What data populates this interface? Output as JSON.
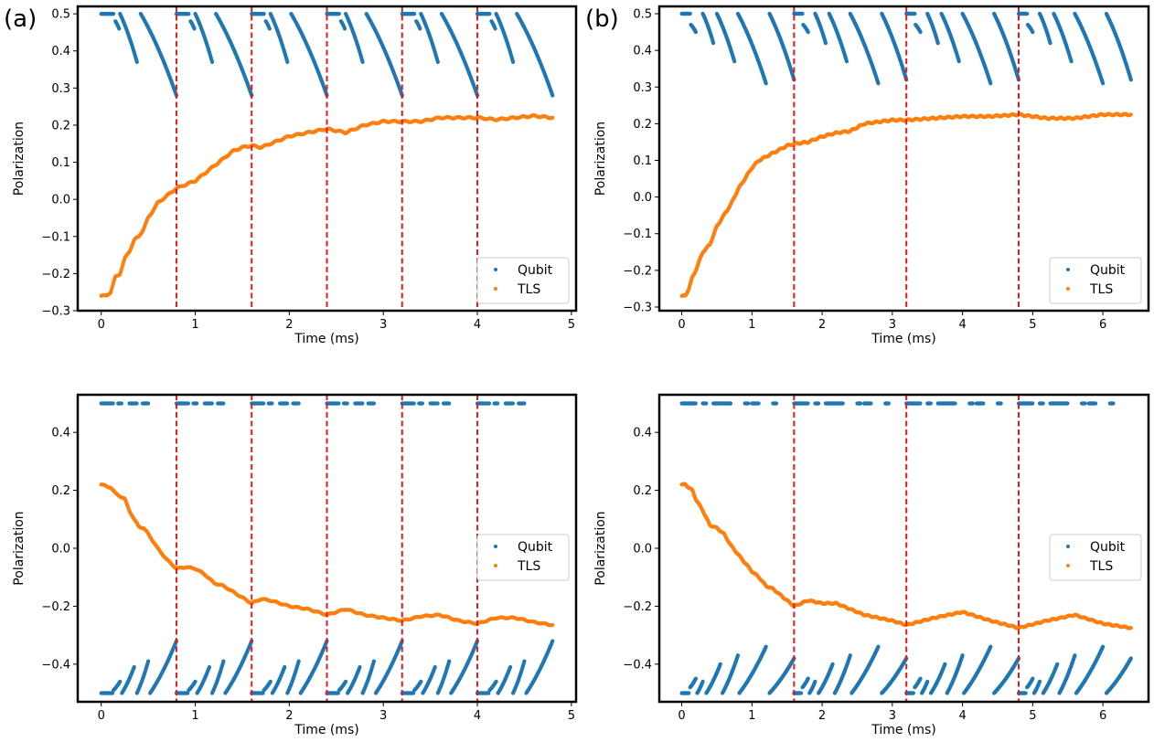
{
  "panel_labels": [
    "(a)",
    "(b)"
  ],
  "colors": {
    "qubit": "#1f77b4",
    "tls": "#ff7f0e",
    "vline": "#e41a1c",
    "frame": "#000000"
  },
  "chart_data": [
    {
      "type": "scatter",
      "panel": "(a)",
      "xlabel": "Time (ms)",
      "ylabel": "Polarization",
      "xlim": [
        -0.25,
        5.05
      ],
      "ylim": [
        -0.3,
        0.52
      ],
      "xticks": [
        0,
        1,
        2,
        3,
        4,
        5
      ],
      "yticks": [
        -0.3,
        -0.2,
        -0.1,
        0.0,
        0.1,
        0.2,
        0.3,
        0.4,
        0.5
      ],
      "ytick_labels": [
        "−0.3",
        "−0.2",
        "−0.1",
        "0.0",
        "0.1",
        "0.2",
        "0.3",
        "0.4",
        "0.5"
      ],
      "vlines": [
        0.8,
        1.6,
        2.4,
        3.2,
        4.0
      ],
      "legend": {
        "position": "lower-right",
        "entries": [
          "Qubit",
          "TLS"
        ]
      },
      "series": [
        {
          "name": "Qubit",
          "kind": "sawtooth",
          "period": 0.8,
          "end": 4.8,
          "segments": [
            [
              0.0,
              0.13,
              0.5,
              0.5
            ],
            [
              0.15,
              0.19,
              0.48,
              0.46
            ],
            [
              0.2,
              0.38,
              0.5,
              0.37
            ],
            [
              0.42,
              0.8,
              0.5,
              0.28
            ]
          ]
        },
        {
          "name": "TLS",
          "kind": "curve",
          "x": [
            0,
            0.05,
            0.1,
            0.15,
            0.2,
            0.25,
            0.3,
            0.35,
            0.4,
            0.45,
            0.5,
            0.6,
            0.7,
            0.8,
            0.9,
            1.0,
            1.1,
            1.2,
            1.3,
            1.4,
            1.5,
            1.6,
            1.7,
            1.8,
            1.9,
            2.0,
            2.2,
            2.4,
            2.6,
            2.8,
            3.0,
            3.2,
            3.4,
            3.6,
            3.8,
            4.0,
            4.2,
            4.4,
            4.6,
            4.8
          ],
          "y": [
            -0.26,
            -0.26,
            -0.25,
            -0.21,
            -0.2,
            -0.16,
            -0.14,
            -0.11,
            -0.1,
            -0.08,
            -0.05,
            -0.01,
            0.01,
            0.03,
            0.04,
            0.05,
            0.07,
            0.09,
            0.11,
            0.13,
            0.14,
            0.145,
            0.14,
            0.15,
            0.16,
            0.17,
            0.18,
            0.19,
            0.18,
            0.2,
            0.21,
            0.21,
            0.21,
            0.22,
            0.22,
            0.22,
            0.215,
            0.22,
            0.225,
            0.22
          ]
        }
      ]
    },
    {
      "type": "scatter",
      "panel": "(b)",
      "xlabel": "Time (ms)",
      "ylabel": "Polarization",
      "xlim": [
        -0.32,
        6.65
      ],
      "ylim": [
        -0.31,
        0.52
      ],
      "xticks": [
        0,
        1,
        2,
        3,
        4,
        5,
        6
      ],
      "yticks": [
        -0.3,
        -0.2,
        -0.1,
        0.0,
        0.1,
        0.2,
        0.3,
        0.4,
        0.5
      ],
      "ytick_labels": [
        "−0.3",
        "−0.2",
        "−0.1",
        "0.0",
        "0.1",
        "0.2",
        "0.3",
        "0.4",
        "0.5"
      ],
      "vlines": [
        1.6,
        3.2,
        4.8
      ],
      "legend": {
        "position": "lower-right",
        "entries": [
          "Qubit",
          "TLS"
        ]
      },
      "series": [
        {
          "name": "Qubit",
          "kind": "sawtooth",
          "period": 1.6,
          "end": 6.4,
          "segments": [
            [
              0.0,
              0.12,
              0.5,
              0.5
            ],
            [
              0.13,
              0.2,
              0.47,
              0.45
            ],
            [
              0.3,
              0.45,
              0.5,
              0.42
            ],
            [
              0.5,
              0.75,
              0.5,
              0.37
            ],
            [
              0.8,
              1.2,
              0.5,
              0.31
            ],
            [
              1.25,
              1.6,
              0.5,
              0.32
            ]
          ]
        },
        {
          "name": "TLS",
          "kind": "curve",
          "x": [
            0,
            0.05,
            0.1,
            0.15,
            0.2,
            0.3,
            0.4,
            0.5,
            0.6,
            0.7,
            0.8,
            0.9,
            1.0,
            1.1,
            1.2,
            1.3,
            1.4,
            1.5,
            1.6,
            1.8,
            2.0,
            2.2,
            2.4,
            2.6,
            2.8,
            3.0,
            3.2,
            3.6,
            4.0,
            4.4,
            4.8,
            5.2,
            5.6,
            6.0,
            6.4
          ],
          "y": [
            -0.27,
            -0.27,
            -0.25,
            -0.22,
            -0.2,
            -0.15,
            -0.13,
            -0.08,
            -0.05,
            -0.02,
            0.02,
            0.05,
            0.08,
            0.1,
            0.11,
            0.12,
            0.13,
            0.14,
            0.145,
            0.15,
            0.165,
            0.175,
            0.18,
            0.2,
            0.205,
            0.21,
            0.21,
            0.215,
            0.22,
            0.22,
            0.225,
            0.215,
            0.215,
            0.225,
            0.225
          ]
        }
      ]
    },
    {
      "type": "scatter",
      "panel": "(a) bottom",
      "xlabel": "Time (ms)",
      "ylabel": "Polarization",
      "xlim": [
        -0.25,
        5.05
      ],
      "ylim": [
        -0.53,
        0.53
      ],
      "xticks": [
        0,
        1,
        2,
        3,
        4,
        5
      ],
      "yticks": [
        -0.4,
        -0.2,
        0.0,
        0.2,
        0.4
      ],
      "ytick_labels": [
        "−0.4",
        "−0.2",
        "0.0",
        "0.2",
        "0.4"
      ],
      "vlines": [
        0.8,
        1.6,
        2.4,
        3.2,
        4.0
      ],
      "legend": {
        "position": "center-right",
        "entries": [
          "Qubit",
          "TLS"
        ]
      },
      "series": [
        {
          "name": "Qubit",
          "kind": "sawtooth",
          "period": 0.8,
          "end": 4.8,
          "top_dots": [
            [
              0.0,
              0.13
            ],
            [
              0.18,
              0.22
            ],
            [
              0.3,
              0.38
            ],
            [
              0.44,
              0.5
            ]
          ],
          "segments": [
            [
              0.0,
              0.12,
              -0.5,
              -0.5
            ],
            [
              0.13,
              0.2,
              -0.49,
              -0.46
            ],
            [
              0.22,
              0.35,
              -0.5,
              -0.41
            ],
            [
              0.38,
              0.5,
              -0.5,
              -0.39
            ],
            [
              0.52,
              0.8,
              -0.5,
              -0.32
            ]
          ]
        },
        {
          "name": "TLS",
          "kind": "curve",
          "x": [
            0,
            0.05,
            0.1,
            0.15,
            0.2,
            0.25,
            0.3,
            0.35,
            0.4,
            0.45,
            0.5,
            0.6,
            0.7,
            0.8,
            0.9,
            1.0,
            1.1,
            1.2,
            1.3,
            1.4,
            1.5,
            1.6,
            1.7,
            1.8,
            1.9,
            2.0,
            2.2,
            2.4,
            2.6,
            2.8,
            3.0,
            3.2,
            3.4,
            3.6,
            3.8,
            4.0,
            4.2,
            4.4,
            4.6,
            4.8
          ],
          "y": [
            0.22,
            0.215,
            0.21,
            0.19,
            0.18,
            0.17,
            0.13,
            0.1,
            0.075,
            0.07,
            0.05,
            0.0,
            -0.04,
            -0.07,
            -0.065,
            -0.07,
            -0.09,
            -0.12,
            -0.13,
            -0.15,
            -0.17,
            -0.19,
            -0.175,
            -0.18,
            -0.19,
            -0.2,
            -0.21,
            -0.23,
            -0.21,
            -0.23,
            -0.24,
            -0.25,
            -0.235,
            -0.23,
            -0.25,
            -0.26,
            -0.24,
            -0.24,
            -0.255,
            -0.265
          ]
        }
      ]
    },
    {
      "type": "scatter",
      "panel": "(b) bottom",
      "xlabel": "Time (ms)",
      "ylabel": "Polarization",
      "xlim": [
        -0.32,
        6.65
      ],
      "ylim": [
        -0.53,
        0.53
      ],
      "xticks": [
        0,
        1,
        2,
        3,
        4,
        5,
        6
      ],
      "yticks": [
        -0.4,
        -0.2,
        0.0,
        0.2,
        0.4
      ],
      "ytick_labels": [
        "−0.4",
        "−0.2",
        "0.0",
        "0.2",
        "0.4"
      ],
      "vlines": [
        1.6,
        3.2,
        4.8
      ],
      "legend": {
        "position": "center-right",
        "entries": [
          "Qubit",
          "TLS"
        ]
      },
      "series": [
        {
          "name": "Qubit",
          "kind": "sawtooth",
          "period": 1.6,
          "end": 6.4,
          "top_dots": [
            [
              0.0,
              0.2
            ],
            [
              0.3,
              0.35
            ],
            [
              0.45,
              0.7
            ],
            [
              0.9,
              0.95
            ],
            [
              1.0,
              1.1
            ],
            [
              1.3,
              1.35
            ]
          ],
          "segments": [
            [
              0.0,
              0.1,
              -0.5,
              -0.5
            ],
            [
              0.12,
              0.2,
              -0.48,
              -0.45
            ],
            [
              0.22,
              0.3,
              -0.5,
              -0.46
            ],
            [
              0.35,
              0.55,
              -0.5,
              -0.4
            ],
            [
              0.58,
              0.8,
              -0.5,
              -0.37
            ],
            [
              0.82,
              1.2,
              -0.5,
              -0.34
            ],
            [
              1.25,
              1.6,
              -0.5,
              -0.38
            ]
          ]
        },
        {
          "name": "TLS",
          "kind": "curve",
          "x": [
            0,
            0.05,
            0.1,
            0.15,
            0.2,
            0.3,
            0.4,
            0.5,
            0.6,
            0.7,
            0.8,
            0.9,
            1.0,
            1.1,
            1.2,
            1.3,
            1.4,
            1.5,
            1.6,
            1.8,
            2.0,
            2.2,
            2.4,
            2.6,
            2.8,
            3.0,
            3.2,
            3.6,
            4.0,
            4.4,
            4.8,
            5.2,
            5.6,
            6.0,
            6.4
          ],
          "y": [
            0.22,
            0.22,
            0.21,
            0.2,
            0.17,
            0.13,
            0.08,
            0.07,
            0.05,
            0.01,
            -0.02,
            -0.05,
            -0.08,
            -0.1,
            -0.13,
            -0.14,
            -0.16,
            -0.18,
            -0.2,
            -0.18,
            -0.19,
            -0.19,
            -0.21,
            -0.23,
            -0.24,
            -0.25,
            -0.265,
            -0.24,
            -0.22,
            -0.25,
            -0.275,
            -0.25,
            -0.23,
            -0.26,
            -0.275
          ]
        }
      ]
    }
  ]
}
